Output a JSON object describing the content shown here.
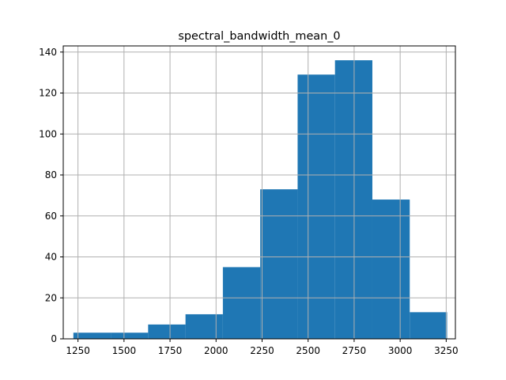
{
  "chart_data": {
    "type": "bar",
    "title": "spectral_bandwidth_mean_0",
    "xlabel": "",
    "ylabel": "",
    "xlim": [
      1170,
      3300
    ],
    "ylim": [
      0,
      143
    ],
    "grid": true,
    "bar_color": "#1f77b4",
    "grid_color": "#b0b0b0",
    "bin_edges": [
      1225,
      1428,
      1631,
      1834,
      2037,
      2240,
      2443,
      2646,
      2849,
      3052,
      3255
    ],
    "values": [
      3,
      3,
      7,
      12,
      35,
      73,
      129,
      136,
      68,
      13
    ],
    "x_ticks": [
      1250,
      1500,
      1750,
      2000,
      2250,
      2500,
      2750,
      3000,
      3250
    ],
    "x_tick_labels": [
      "1250",
      "1500",
      "1750",
      "2000",
      "2250",
      "2500",
      "2750",
      "3000",
      "3250"
    ],
    "y_ticks": [
      0,
      20,
      40,
      60,
      80,
      100,
      120,
      140
    ],
    "y_tick_labels": [
      "0",
      "20",
      "40",
      "60",
      "80",
      "100",
      "120",
      "140"
    ]
  }
}
